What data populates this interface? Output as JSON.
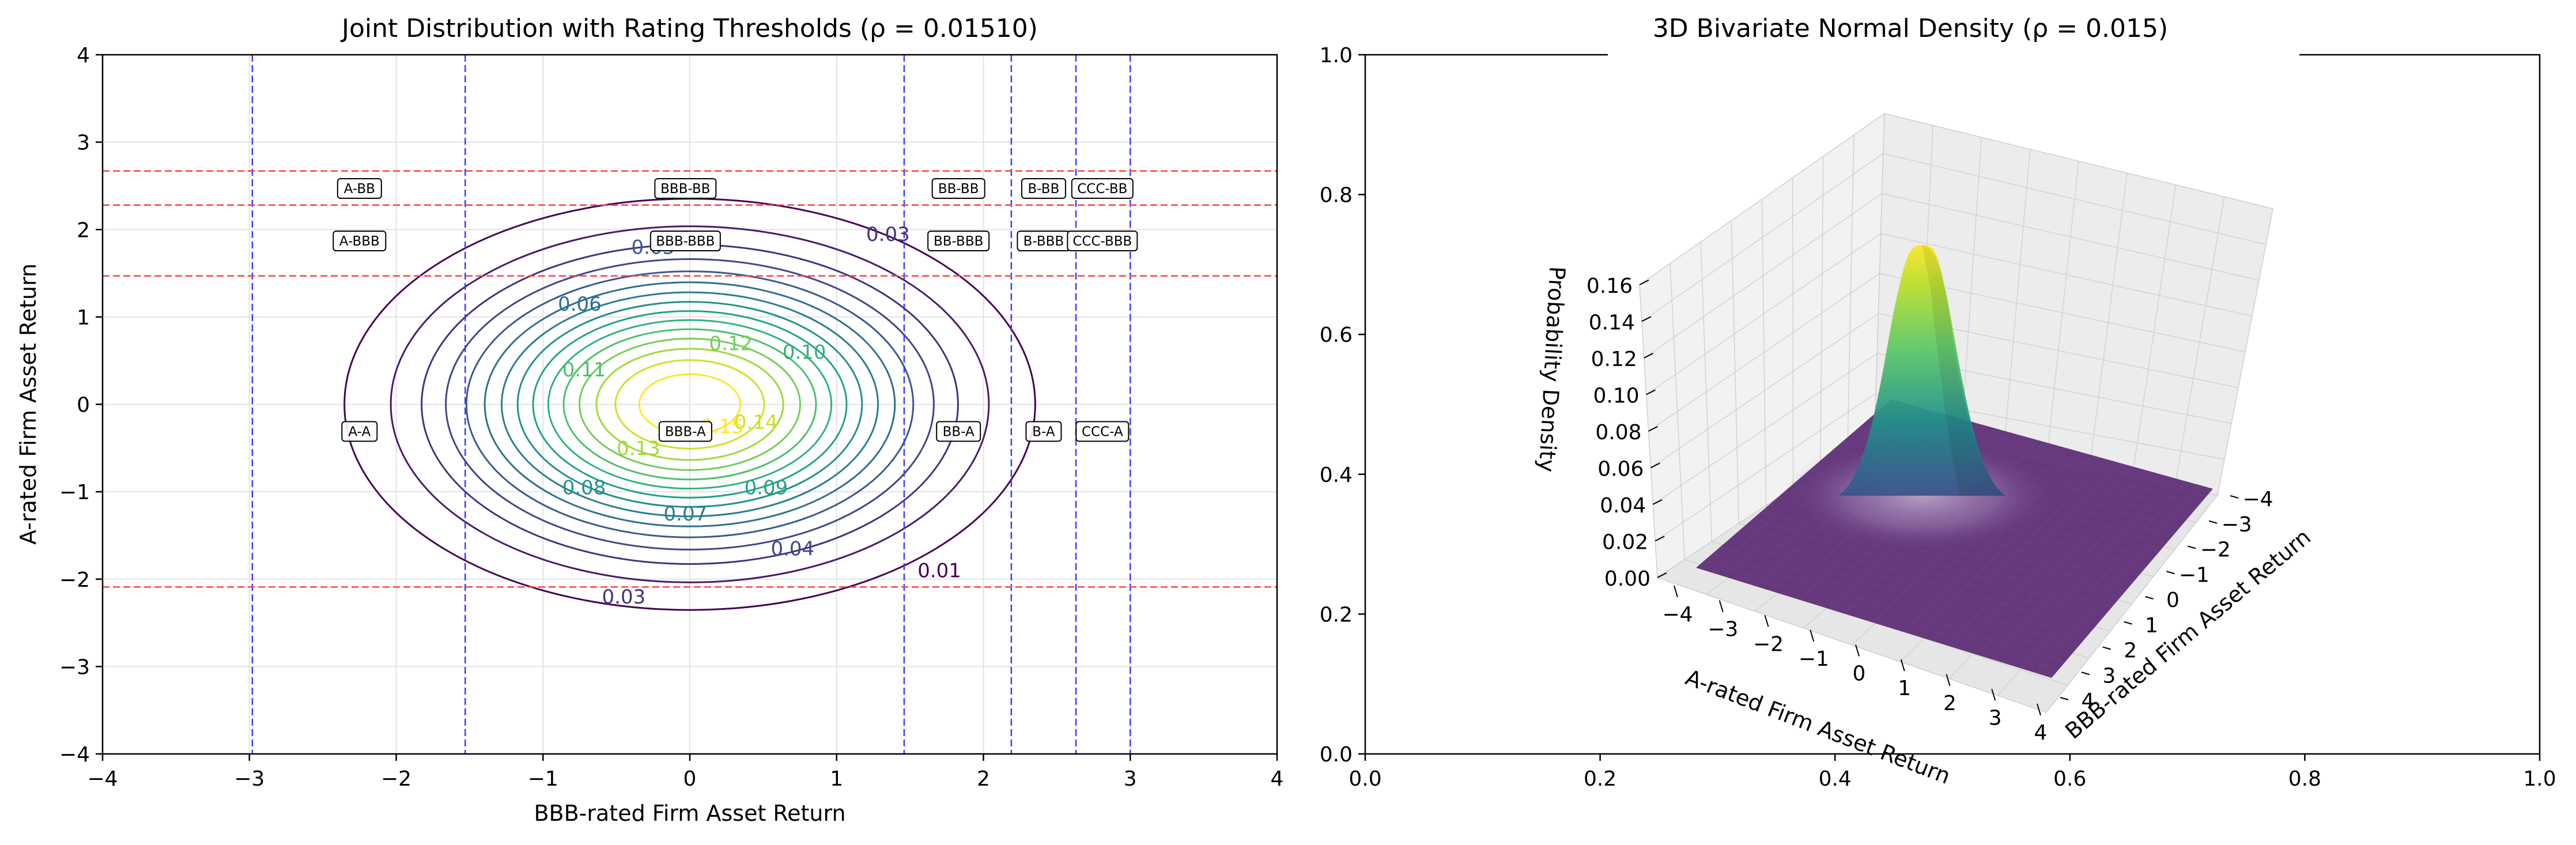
{
  "chart_data": [
    {
      "type": "contour",
      "title": "Joint Distribution with Rating Thresholds (ρ = 0.01510)",
      "xlabel": "BBB-rated Firm Asset Return",
      "ylabel": "A-rated Firm Asset Return",
      "xlim": [
        -4,
        4
      ],
      "ylim": [
        -4,
        4
      ],
      "x_ticks": [
        "−4",
        "−3",
        "−2",
        "−1",
        "0",
        "1",
        "2",
        "3",
        "4"
      ],
      "y_ticks": [
        "−4",
        "−3",
        "−2",
        "−1",
        "0",
        "1",
        "2",
        "3",
        "4"
      ],
      "grid": true,
      "rho": 0.0151,
      "contour_levels": [
        0.01,
        0.02,
        0.03,
        0.04,
        0.05,
        0.06,
        0.07,
        0.08,
        0.09,
        0.1,
        0.11,
        0.12,
        0.13,
        0.14,
        0.15
      ],
      "contour_labels": [
        {
          "text": "0.01",
          "level": 0.01,
          "x": 1.7,
          "y": -1.9
        },
        {
          "text": "0.03",
          "level": 0.03,
          "x": 1.35,
          "y": 1.95
        },
        {
          "text": "0.03",
          "level": 0.03,
          "x": -0.45,
          "y": -2.2
        },
        {
          "text": "0.04",
          "level": 0.04,
          "x": 0.7,
          "y": -1.65
        },
        {
          "text": "0.05",
          "level": 0.05,
          "x": -0.25,
          "y": 1.8
        },
        {
          "text": "0.06",
          "level": 0.06,
          "x": -0.75,
          "y": 1.15
        },
        {
          "text": "0.07",
          "level": 0.07,
          "x": -0.03,
          "y": -1.25
        },
        {
          "text": "0.08",
          "level": 0.08,
          "x": -0.72,
          "y": -0.95
        },
        {
          "text": "0.09",
          "level": 0.09,
          "x": 0.52,
          "y": -0.95
        },
        {
          "text": "0.10",
          "level": 0.1,
          "x": 0.78,
          "y": 0.6
        },
        {
          "text": "0.11",
          "level": 0.11,
          "x": -0.72,
          "y": 0.4
        },
        {
          "text": "0.12",
          "level": 0.12,
          "x": 0.28,
          "y": 0.7
        },
        {
          "text": "0.13",
          "level": 0.13,
          "x": -0.35,
          "y": -0.5
        },
        {
          "text": "0.14",
          "level": 0.14,
          "x": 0.45,
          "y": -0.2
        },
        {
          "text": "0.15",
          "level": 0.15,
          "x": 0.22,
          "y": -0.25
        }
      ],
      "vertical_thresholds": [
        -2.98,
        -1.53,
        1.46,
        2.19,
        2.63,
        3.0
      ],
      "horizontal_thresholds": [
        2.67,
        2.28,
        1.47,
        -2.09
      ],
      "region_labels": [
        {
          "text": "A-BB",
          "x": -2.25,
          "y": 2.47
        },
        {
          "text": "BBB-BB",
          "x": -0.03,
          "y": 2.47
        },
        {
          "text": "BB-BB",
          "x": 1.83,
          "y": 2.47
        },
        {
          "text": "B-BB",
          "x": 2.41,
          "y": 2.47
        },
        {
          "text": "CCC-BB",
          "x": 2.81,
          "y": 2.47
        },
        {
          "text": "A-BBB",
          "x": -2.25,
          "y": 1.87
        },
        {
          "text": "BBB-BBB",
          "x": -0.03,
          "y": 1.87
        },
        {
          "text": "BB-BBB",
          "x": 1.83,
          "y": 1.87
        },
        {
          "text": "B-BBB",
          "x": 2.41,
          "y": 1.87
        },
        {
          "text": "CCC-BBB",
          "x": 2.81,
          "y": 1.87
        },
        {
          "text": "A-A",
          "x": -2.25,
          "y": -0.31
        },
        {
          "text": "BBB-A",
          "x": -0.03,
          "y": -0.31
        },
        {
          "text": "BB-A",
          "x": 1.83,
          "y": -0.31
        },
        {
          "text": "B-A",
          "x": 2.41,
          "y": -0.31
        },
        {
          "text": "CCC-A",
          "x": 2.81,
          "y": -0.31
        }
      ],
      "colors": {
        "vertical_lines": "#3b3bff",
        "horizontal_lines": "#ff4040",
        "colormap": "viridis"
      }
    },
    {
      "type": "surface",
      "title": "3D Bivariate Normal Density (ρ = 0.015)",
      "xlabel": "A-rated Firm Asset Return",
      "ylabel": "BBB-rated Firm Asset Return",
      "zlabel": "Probability Density",
      "xlim": [
        -4,
        4
      ],
      "ylim": [
        -4,
        4
      ],
      "zlim": [
        0,
        0.16
      ],
      "x_ticks": [
        "−4",
        "−3",
        "−2",
        "−1",
        "0",
        "1",
        "2",
        "3",
        "4"
      ],
      "y_ticks": [
        "−4",
        "−3",
        "−2",
        "−1",
        "0",
        "1",
        "2",
        "3",
        "4"
      ],
      "z_ticks": [
        "0.00",
        "0.02",
        "0.04",
        "0.06",
        "0.08",
        "0.10",
        "0.12",
        "0.14",
        "0.16"
      ],
      "axes2d_xlim": [
        0,
        1
      ],
      "axes2d_ylim": [
        0,
        1
      ],
      "axes2d_x_ticks": [
        "0.0",
        "0.2",
        "0.4",
        "0.6",
        "0.8",
        "1.0"
      ],
      "axes2d_y_ticks": [
        "0.0",
        "0.2",
        "0.4",
        "0.6",
        "0.8",
        "1.0"
      ],
      "peak_density": 0.159,
      "colors": {
        "colormap": "viridis",
        "floor": "#5b2a74"
      }
    }
  ]
}
